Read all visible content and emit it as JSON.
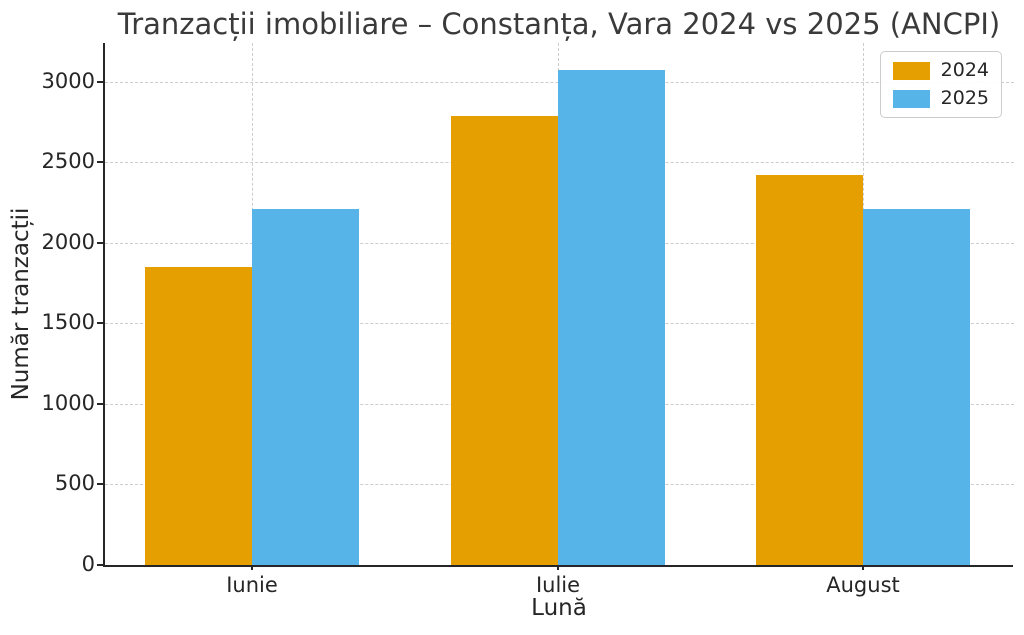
{
  "chart_data": {
    "type": "bar",
    "title": "Tranzacții imobiliare – Constanța, Vara 2024 vs 2025 (ANCPI)",
    "xlabel": "Lună",
    "ylabel": "Număr tranzacții",
    "categories": [
      "Iunie",
      "Iulie",
      "August"
    ],
    "series": [
      {
        "name": "2024",
        "color": "#E69F00",
        "values": [
          1850,
          2790,
          2420
        ]
      },
      {
        "name": "2025",
        "color": "#56B4E9",
        "values": [
          2210,
          3070,
          2210
        ]
      }
    ],
    "yticks": [
      0,
      500,
      1000,
      1500,
      2000,
      2500,
      3000
    ],
    "ylim": [
      0,
      3240
    ],
    "grid": true,
    "grid_style": "dashed",
    "legend": {
      "position": "upper right",
      "labels": [
        "2024",
        "2025"
      ]
    }
  },
  "colors": {
    "grid": "#cccccc",
    "spine": "#262626",
    "title_text": "#3a3a3a",
    "tick_text": "#262626",
    "background": "#ffffff"
  }
}
